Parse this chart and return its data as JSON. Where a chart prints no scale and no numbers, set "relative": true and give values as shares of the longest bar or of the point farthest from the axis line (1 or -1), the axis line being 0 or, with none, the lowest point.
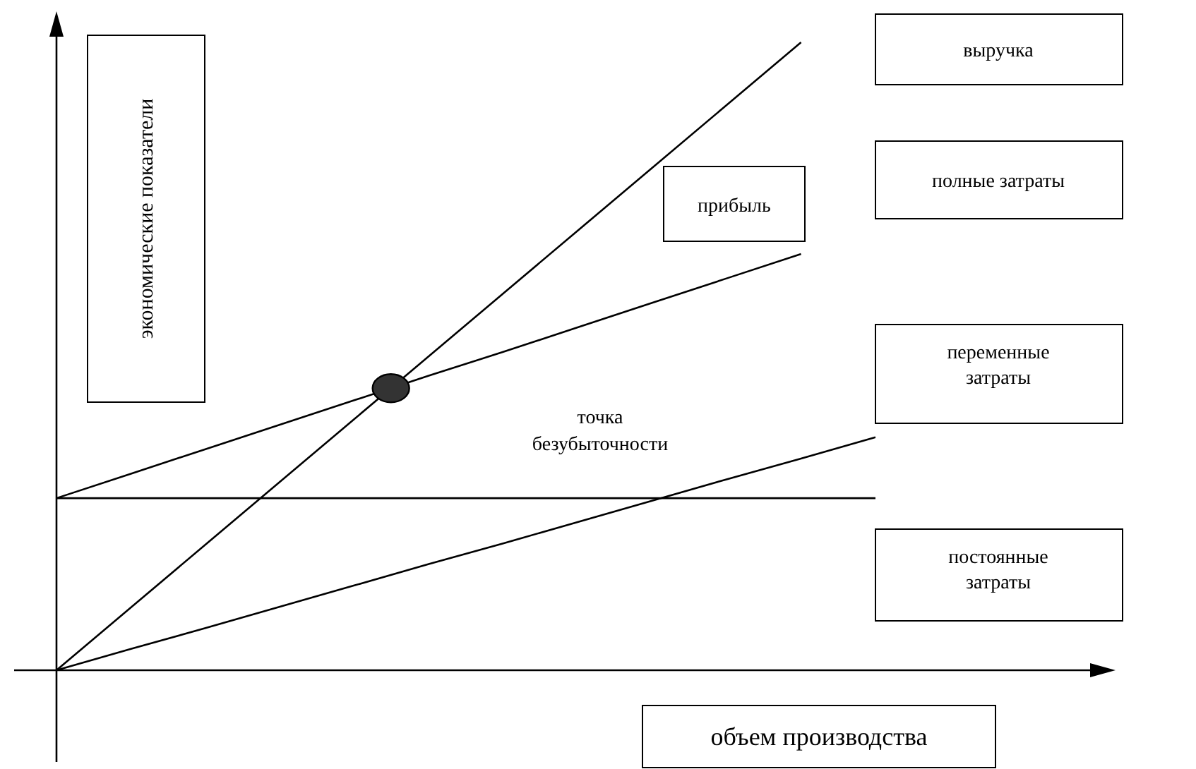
{
  "chart_data": {
    "type": "line",
    "relative": true,
    "xlabel": "объем производства",
    "ylabel": "экономические показатели",
    "categories": [
      null,
      null,
      null,
      null,
      null,
      null,
      null,
      null,
      null,
      null,
      null,
      null
    ],
    "series": [
      {
        "name": "выручка",
        "color": "#000000",
        "values": [
          0,
          0.1,
          0.2,
          0.3,
          0.4,
          0.5,
          0.6,
          0.7,
          0.8,
          0.9,
          1,
          null
        ]
      },
      {
        "name": "полные затраты",
        "color": "#000000",
        "values": [
          0.274,
          0.313,
          0.352,
          0.391,
          0.43,
          0.469,
          0.507,
          0.546,
          0.585,
          0.624,
          0.663,
          null
        ]
      },
      {
        "name": "переменные затраты",
        "color": "#000000",
        "values": [
          0,
          0.034,
          0.067,
          0.101,
          0.135,
          0.169,
          0.202,
          0.236,
          0.27,
          0.304,
          0.337,
          0.371
        ]
      },
      {
        "name": "постоянные затраты",
        "color": "#000000",
        "values": [
          0.274,
          0.274,
          0.274,
          0.274,
          0.274,
          0.274,
          0.274,
          0.274,
          0.274,
          0.274,
          0.274,
          0.274
        ]
      }
    ],
    "annotations": [
      "прибыль",
      "точка безубыточности"
    ]
  }
}
